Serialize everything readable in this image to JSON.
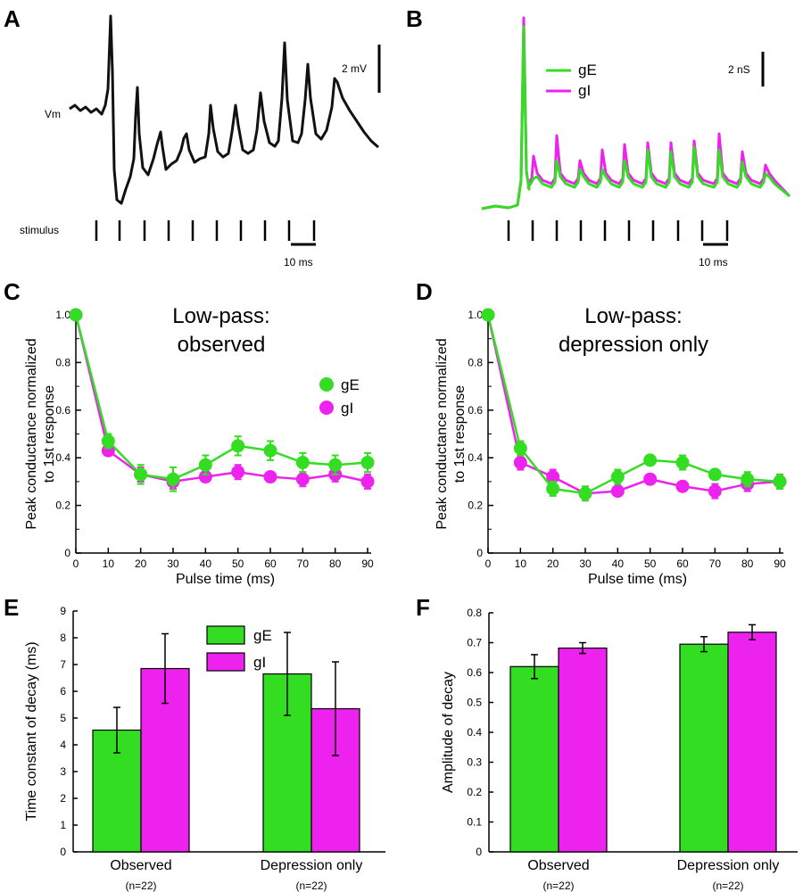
{
  "colors": {
    "gE": "#33dd22",
    "gI": "#ee22ee",
    "trace": "#111111"
  },
  "panels": {
    "A": {
      "letter": "A",
      "trace_label": "Vm",
      "scale_v": "2 mV",
      "stimulus_label": "stimulus",
      "scale_t": "10  ms"
    },
    "B": {
      "letter": "B",
      "scale_v": "2 nS",
      "scale_t": "10 ms",
      "legend": [
        "gE",
        "gI"
      ]
    },
    "C": {
      "letter": "C"
    },
    "D": {
      "letter": "D"
    },
    "E": {
      "letter": "E"
    },
    "F": {
      "letter": "F"
    }
  },
  "chart_data": [
    {
      "id": "C",
      "type": "line",
      "title": "Low-pass:\nobserved",
      "xlabel": "Pulse time (ms)",
      "ylabel": "Peak conductance normalized\nto 1st response",
      "xlim": [
        0,
        90
      ],
      "ylim": [
        0,
        1.0
      ],
      "xticks": [
        0,
        10,
        20,
        30,
        40,
        50,
        60,
        70,
        80,
        90
      ],
      "yticks": [
        "0",
        "0.2",
        "0.4",
        "0.6",
        "0.8",
        "1.0"
      ],
      "x": [
        0,
        10,
        20,
        30,
        40,
        50,
        60,
        70,
        80,
        90
      ],
      "series": [
        {
          "name": "gE",
          "values": [
            1.0,
            0.47,
            0.33,
            0.31,
            0.37,
            0.45,
            0.43,
            0.38,
            0.37,
            0.38
          ],
          "errors": [
            0,
            0.03,
            0.04,
            0.05,
            0.04,
            0.04,
            0.04,
            0.04,
            0.04,
            0.04
          ]
        },
        {
          "name": "gI",
          "values": [
            1.0,
            0.43,
            0.33,
            0.3,
            0.32,
            0.34,
            0.32,
            0.31,
            0.33,
            0.3
          ],
          "errors": [
            0,
            0.02,
            0.03,
            0.03,
            0.02,
            0.03,
            0.02,
            0.03,
            0.03,
            0.03
          ]
        }
      ],
      "legend": "right"
    },
    {
      "id": "D",
      "type": "line",
      "title": "Low-pass:\ndepression only",
      "xlabel": "Pulse time (ms)",
      "ylabel": "Peak conductance normalized\nto 1st response",
      "xlim": [
        0,
        90
      ],
      "ylim": [
        0,
        1.0
      ],
      "xticks": [
        0,
        10,
        20,
        30,
        40,
        50,
        60,
        70,
        80,
        90
      ],
      "yticks": [
        "0",
        "0.2",
        "0.4",
        "0.6",
        "0.8",
        "1.0"
      ],
      "x": [
        0,
        10,
        20,
        30,
        40,
        50,
        60,
        70,
        80,
        90
      ],
      "series": [
        {
          "name": "gE",
          "values": [
            1.0,
            0.44,
            0.27,
            0.25,
            0.32,
            0.39,
            0.38,
            0.33,
            0.31,
            0.3
          ],
          "errors": [
            0,
            0.03,
            0.03,
            0.03,
            0.03,
            0.02,
            0.03,
            0.02,
            0.03,
            0.03
          ]
        },
        {
          "name": "gI",
          "values": [
            1.0,
            0.38,
            0.32,
            0.25,
            0.26,
            0.31,
            0.28,
            0.26,
            0.29,
            0.3
          ],
          "errors": [
            0,
            0.03,
            0.03,
            0.02,
            0.02,
            0.02,
            0.02,
            0.03,
            0.03,
            0.03
          ]
        }
      ]
    },
    {
      "id": "E",
      "type": "bar",
      "ylabel": "Time constant of decay (ms)",
      "ylim": [
        0,
        9
      ],
      "yticks": [
        "0",
        "1",
        "2",
        "3",
        "4",
        "5",
        "6",
        "7",
        "8",
        "9"
      ],
      "categories": [
        "Observed",
        "Depression only"
      ],
      "category_notes": [
        "(n=22)",
        "(n=22)"
      ],
      "series": [
        {
          "name": "gE",
          "values": [
            4.55,
            6.65
          ],
          "errors": [
            0.85,
            1.55
          ]
        },
        {
          "name": "gI",
          "values": [
            6.85,
            5.35
          ],
          "errors": [
            1.3,
            1.75
          ]
        }
      ],
      "legend": "top"
    },
    {
      "id": "F",
      "type": "bar",
      "ylabel": "Amplitude of decay",
      "ylim": [
        0,
        0.8
      ],
      "yticks": [
        "0",
        "0.1",
        "0.2",
        "0.3",
        "0.4",
        "0.5",
        "0.6",
        "0.7",
        "0.8"
      ],
      "categories": [
        "Observed",
        "Depression only"
      ],
      "category_notes": [
        "(n=22)",
        "(n=22)"
      ],
      "series": [
        {
          "name": "gE",
          "values": [
            0.62,
            0.695
          ],
          "errors": [
            0.04,
            0.025
          ]
        },
        {
          "name": "gI",
          "values": [
            0.682,
            0.735
          ],
          "errors": [
            0.018,
            0.025
          ]
        }
      ]
    }
  ]
}
